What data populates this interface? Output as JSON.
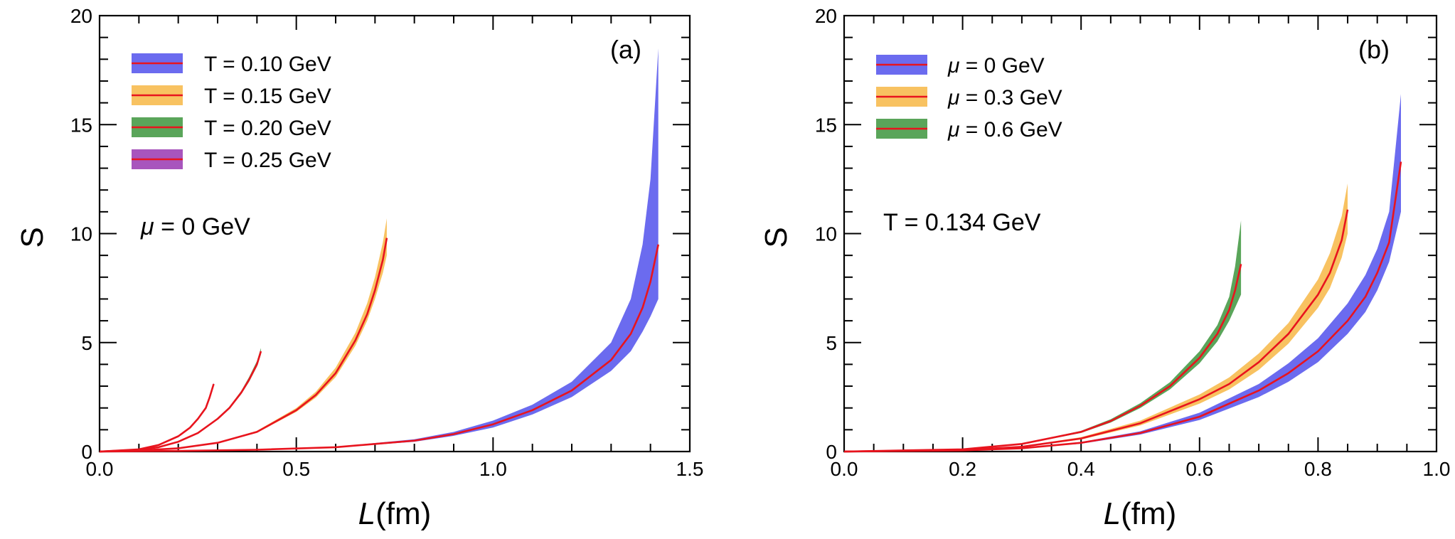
{
  "chart_data": [
    {
      "type": "area",
      "panel_label": "(a)",
      "xlabel_italic": "L",
      "xlabel_unit": "(fm)",
      "ylabel": "S",
      "xlim": [
        0,
        1.5
      ],
      "ylim": [
        0,
        20
      ],
      "xticks": [
        0.0,
        0.5,
        1.0,
        1.5
      ],
      "xtick_labels": [
        "0.0",
        "0.5",
        "1.0",
        "1.5"
      ],
      "yticks": [
        0,
        5,
        10,
        15,
        20
      ],
      "ytick_labels": [
        "0",
        "5",
        "10",
        "15",
        "20"
      ],
      "annotation_symbol": "μ",
      "annotation_text": " = 0 GeV",
      "legend_position": "top-left",
      "series": [
        {
          "name": "T = 0.10 GeV",
          "band_color": "#6b6bef",
          "line_color": "#e8141e",
          "x": [
            0.0,
            0.2,
            0.4,
            0.6,
            0.8,
            0.9,
            1.0,
            1.1,
            1.2,
            1.3,
            1.35,
            1.38,
            1.4,
            1.42
          ],
          "y": [
            0.0,
            0.03,
            0.08,
            0.2,
            0.5,
            0.8,
            1.25,
            1.9,
            2.8,
            4.2,
            5.4,
            6.6,
            7.8,
            9.5
          ],
          "lower": [
            0.0,
            0.03,
            0.07,
            0.18,
            0.45,
            0.72,
            1.1,
            1.7,
            2.5,
            3.7,
            4.6,
            5.5,
            6.2,
            7.0
          ],
          "upper": [
            0.0,
            0.03,
            0.09,
            0.22,
            0.56,
            0.9,
            1.42,
            2.15,
            3.2,
            5.0,
            7.0,
            9.5,
            12.5,
            18.5
          ]
        },
        {
          "name": "T = 0.15 GeV",
          "band_color": "#f8c261",
          "line_color": "#e8141e",
          "x": [
            0.0,
            0.1,
            0.2,
            0.3,
            0.4,
            0.5,
            0.55,
            0.6,
            0.65,
            0.68,
            0.7,
            0.72,
            0.73
          ],
          "y": [
            0.0,
            0.05,
            0.15,
            0.4,
            0.9,
            1.9,
            2.6,
            3.6,
            5.1,
            6.3,
            7.4,
            8.8,
            9.8
          ],
          "lower": [
            0.0,
            0.05,
            0.15,
            0.38,
            0.86,
            1.82,
            2.48,
            3.42,
            4.85,
            6.0,
            7.0,
            8.2,
            9.0
          ],
          "upper": [
            0.0,
            0.05,
            0.16,
            0.42,
            0.95,
            2.0,
            2.75,
            3.85,
            5.45,
            6.8,
            8.0,
            9.6,
            10.7
          ]
        },
        {
          "name": "T = 0.20 GeV",
          "band_color": "#5aa55a",
          "line_color": "#e8141e",
          "x": [
            0.0,
            0.1,
            0.15,
            0.2,
            0.25,
            0.3,
            0.33,
            0.36,
            0.38,
            0.4,
            0.41
          ],
          "y": [
            0.0,
            0.08,
            0.2,
            0.45,
            0.85,
            1.5,
            2.0,
            2.7,
            3.3,
            4.0,
            4.6
          ],
          "lower": [
            0.0,
            0.08,
            0.2,
            0.44,
            0.83,
            1.46,
            1.95,
            2.63,
            3.2,
            3.9,
            4.45
          ],
          "upper": [
            0.0,
            0.08,
            0.21,
            0.46,
            0.87,
            1.55,
            2.06,
            2.78,
            3.42,
            4.15,
            4.75
          ]
        },
        {
          "name": "T = 0.25 GeV",
          "band_color": "#a855bd",
          "line_color": "#e8141e",
          "x": [
            0.0,
            0.1,
            0.15,
            0.2,
            0.23,
            0.25,
            0.27,
            0.28,
            0.29
          ],
          "y": [
            0.0,
            0.1,
            0.3,
            0.7,
            1.1,
            1.5,
            2.0,
            2.5,
            3.1
          ],
          "lower": [
            0.0,
            0.1,
            0.3,
            0.69,
            1.08,
            1.47,
            1.96,
            2.45,
            3.02
          ],
          "upper": [
            0.0,
            0.1,
            0.31,
            0.71,
            1.12,
            1.53,
            2.04,
            2.55,
            3.16
          ]
        }
      ]
    },
    {
      "type": "area",
      "panel_label": "(b)",
      "xlabel_italic": "L",
      "xlabel_unit": "(fm)",
      "ylabel": "S",
      "xlim": [
        0,
        1.0
      ],
      "ylim": [
        0,
        20
      ],
      "xticks": [
        0.0,
        0.2,
        0.4,
        0.6,
        0.8,
        1.0
      ],
      "xtick_labels": [
        "0.0",
        "0.2",
        "0.4",
        "0.6",
        "0.8",
        "1.0"
      ],
      "yticks": [
        0,
        5,
        10,
        15,
        20
      ],
      "ytick_labels": [
        "0",
        "5",
        "10",
        "15",
        "20"
      ],
      "annotation_symbol": "",
      "annotation_text": "T = 0.134 GeV",
      "legend_position": "top-left",
      "series": [
        {
          "name_symbol": "μ",
          "name": " = 0 GeV",
          "band_color": "#6b6bef",
          "line_color": "#e8141e",
          "x": [
            0.0,
            0.2,
            0.3,
            0.4,
            0.5,
            0.6,
            0.7,
            0.75,
            0.8,
            0.85,
            0.88,
            0.9,
            0.92,
            0.94
          ],
          "y": [
            0.0,
            0.05,
            0.15,
            0.4,
            0.85,
            1.6,
            2.8,
            3.6,
            4.6,
            6.0,
            7.1,
            8.2,
            9.6,
            13.3
          ],
          "lower": [
            0.0,
            0.05,
            0.14,
            0.36,
            0.78,
            1.45,
            2.5,
            3.2,
            4.1,
            5.4,
            6.4,
            7.4,
            8.7,
            11.0
          ],
          "upper": [
            0.0,
            0.05,
            0.16,
            0.44,
            0.93,
            1.78,
            3.1,
            4.05,
            5.2,
            6.8,
            8.1,
            9.3,
            11.0,
            16.4
          ]
        },
        {
          "name_symbol": "μ",
          "name": " = 0.3 GeV",
          "band_color": "#f8c261",
          "line_color": "#e8141e",
          "x": [
            0.0,
            0.2,
            0.3,
            0.4,
            0.5,
            0.6,
            0.65,
            0.7,
            0.75,
            0.8,
            0.82,
            0.84,
            0.85
          ],
          "y": [
            0.0,
            0.07,
            0.22,
            0.6,
            1.3,
            2.4,
            3.1,
            4.1,
            5.4,
            7.2,
            8.2,
            9.7,
            11.1
          ],
          "lower": [
            0.0,
            0.07,
            0.2,
            0.55,
            1.2,
            2.2,
            2.85,
            3.75,
            4.95,
            6.6,
            7.5,
            8.9,
            10.0
          ],
          "upper": [
            0.0,
            0.07,
            0.24,
            0.66,
            1.42,
            2.62,
            3.4,
            4.5,
            5.9,
            7.9,
            9.1,
            10.8,
            12.3
          ]
        },
        {
          "name_symbol": "μ",
          "name": " = 0.6 GeV",
          "band_color": "#5aa55a",
          "line_color": "#e8141e",
          "x": [
            0.0,
            0.2,
            0.3,
            0.4,
            0.45,
            0.5,
            0.55,
            0.6,
            0.63,
            0.65,
            0.66,
            0.67
          ],
          "y": [
            0.0,
            0.1,
            0.35,
            0.9,
            1.4,
            2.1,
            3.0,
            4.3,
            5.4,
            6.5,
            7.4,
            8.6
          ],
          "lower": [
            0.0,
            0.1,
            0.33,
            0.85,
            1.33,
            2.0,
            2.85,
            4.05,
            5.05,
            6.0,
            6.6,
            7.2
          ],
          "upper": [
            0.0,
            0.1,
            0.37,
            0.95,
            1.48,
            2.22,
            3.18,
            4.6,
            5.8,
            7.1,
            8.5,
            10.6
          ]
        }
      ]
    }
  ]
}
